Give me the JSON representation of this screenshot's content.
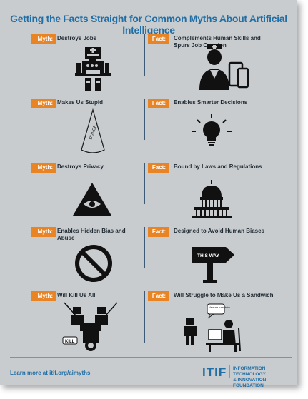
{
  "title": "Getting the Facts Straight for Common Myths About Artificial Intelligence",
  "myth_label": "Myth:",
  "fact_label": "Fact:",
  "rows": [
    {
      "myth": "Destroys Jobs",
      "fact": "Complements Human Skills and Spurs Job Creation"
    },
    {
      "myth": "Makes Us Stupid",
      "fact": "Enables Smarter Decisions"
    },
    {
      "myth": "Destroys Privacy",
      "fact": "Bound by Laws and Regulations"
    },
    {
      "myth": "Enables Hidden Bias and Abuse",
      "fact": "Designed to Avoid Human Biases"
    },
    {
      "myth": "Will Kill Us All",
      "fact": "Will Struggle to Make Us a Sandwich"
    }
  ],
  "icons": {
    "dunce_cap_text": "DUNCE",
    "sign_text": "THIS WAY",
    "kill_text": "KILL",
    "speech_text": "Make me a sandwich"
  },
  "footer": {
    "learn_more": "Learn more at itif.org/aimyths",
    "logo": "ITIF",
    "org_line1": "INFORMATION TECHNOLOGY",
    "org_line2": "& INNOVATION FOUNDATION"
  },
  "colors": {
    "accent_orange": "#e98425",
    "brand_blue": "#1f6ea5",
    "background": "#c9cccf"
  }
}
